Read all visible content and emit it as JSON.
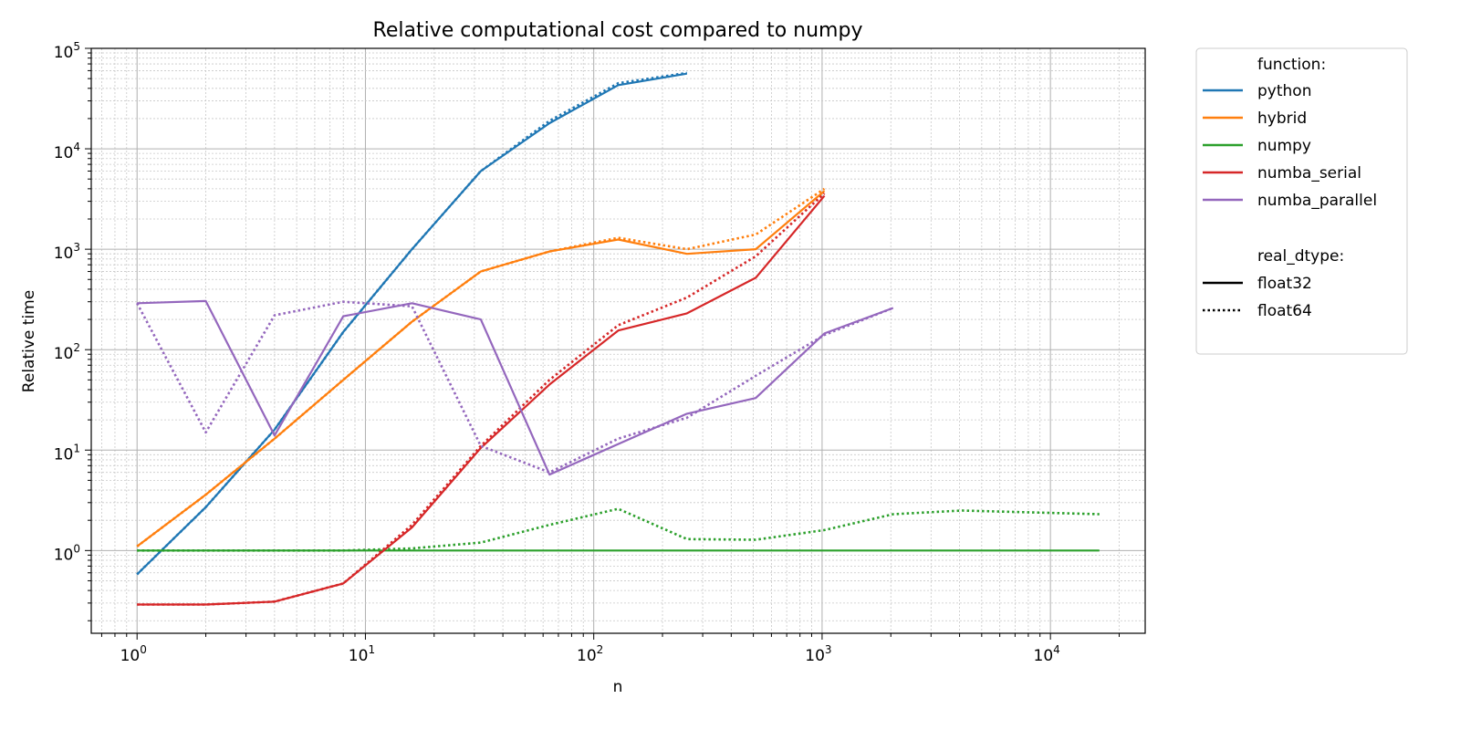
{
  "chart_data": {
    "type": "line",
    "title": "Relative computational cost compared to numpy",
    "xlabel": "n",
    "ylabel": "Relative time",
    "xscale": "log",
    "yscale": "log",
    "xlim": [
      0.63,
      26000
    ],
    "ylim": [
      0.15,
      100000
    ],
    "grid": "major and minor",
    "legend_position": "outside-right",
    "x_ticks": [
      {
        "value": 1,
        "base": "10",
        "exp": "0"
      },
      {
        "value": 10,
        "base": "10",
        "exp": "1"
      },
      {
        "value": 100,
        "base": "10",
        "exp": "2"
      },
      {
        "value": 1000,
        "base": "10",
        "exp": "3"
      },
      {
        "value": 10000,
        "base": "10",
        "exp": "4"
      }
    ],
    "y_ticks": [
      {
        "value": 1,
        "base": "10",
        "exp": "0"
      },
      {
        "value": 10,
        "base": "10",
        "exp": "1"
      },
      {
        "value": 100,
        "base": "10",
        "exp": "2"
      },
      {
        "value": 1000,
        "base": "10",
        "exp": "3"
      },
      {
        "value": 10000,
        "base": "10",
        "exp": "4"
      },
      {
        "value": 100000,
        "base": "10",
        "exp": "5"
      }
    ],
    "legend": {
      "function_header": "function:",
      "functions": [
        {
          "name": "python",
          "color": "#1f77b4"
        },
        {
          "name": "hybrid",
          "color": "#ff7f0e"
        },
        {
          "name": "numpy",
          "color": "#2ca02c"
        },
        {
          "name": "numba_serial",
          "color": "#d62728"
        },
        {
          "name": "numba_parallel",
          "color": "#9467bd"
        }
      ],
      "dtype_header": "real_dtype:",
      "dtypes": [
        {
          "name": "float32",
          "style": "solid"
        },
        {
          "name": "float64",
          "style": "dotted"
        }
      ]
    },
    "series": [
      {
        "function": "python",
        "dtype": "float32",
        "color": "#1f77b4",
        "style": "solid",
        "x": [
          1,
          2,
          4,
          8,
          16,
          32,
          64,
          128,
          256
        ],
        "y": [
          0.58,
          2.7,
          16,
          150,
          1000,
          6000,
          18000,
          43000,
          56000
        ]
      },
      {
        "function": "python",
        "dtype": "float64",
        "color": "#1f77b4",
        "style": "dotted",
        "x": [
          1,
          2,
          4,
          8,
          16,
          32,
          64,
          128,
          256
        ],
        "y": [
          0.58,
          2.7,
          16,
          150,
          1000,
          6000,
          19000,
          45000,
          57000
        ]
      },
      {
        "function": "hybrid",
        "dtype": "float32",
        "color": "#ff7f0e",
        "style": "solid",
        "x": [
          1,
          2,
          4,
          8,
          16,
          32,
          64,
          128,
          256,
          512,
          1024
        ],
        "y": [
          1.1,
          3.6,
          13,
          50,
          190,
          600,
          950,
          1250,
          900,
          1000,
          3800
        ]
      },
      {
        "function": "hybrid",
        "dtype": "float64",
        "color": "#ff7f0e",
        "style": "dotted",
        "x": [
          1,
          2,
          4,
          8,
          16,
          32,
          64,
          128,
          256,
          512,
          1024
        ],
        "y": [
          1.1,
          3.6,
          13,
          50,
          190,
          600,
          950,
          1300,
          1000,
          1400,
          4000
        ]
      },
      {
        "function": "numpy",
        "dtype": "float32",
        "color": "#2ca02c",
        "style": "solid",
        "x": [
          1,
          2,
          4,
          8,
          16,
          32,
          64,
          128,
          256,
          512,
          1024,
          2048,
          4096,
          8192,
          16384
        ],
        "y": [
          1,
          1,
          1,
          1,
          1,
          1,
          1,
          1,
          1,
          1,
          1,
          1,
          1,
          1,
          1
        ]
      },
      {
        "function": "numpy",
        "dtype": "float64",
        "color": "#2ca02c",
        "style": "dotted",
        "x": [
          1,
          2,
          4,
          8,
          16,
          32,
          64,
          128,
          256,
          512,
          1024,
          2048,
          4096,
          8192,
          16384
        ],
        "y": [
          1,
          1,
          1,
          1,
          1.05,
          1.2,
          1.8,
          2.6,
          1.3,
          1.28,
          1.6,
          2.3,
          2.5,
          2.4,
          2.3
        ]
      },
      {
        "function": "numba_serial",
        "dtype": "float32",
        "color": "#d62728",
        "style": "solid",
        "x": [
          1,
          2,
          4,
          8,
          16,
          32,
          64,
          128,
          256,
          512,
          1024
        ],
        "y": [
          0.29,
          0.29,
          0.31,
          0.47,
          1.7,
          10.5,
          45,
          155,
          230,
          520,
          3400
        ]
      },
      {
        "function": "numba_serial",
        "dtype": "float64",
        "color": "#d62728",
        "style": "dotted",
        "x": [
          1,
          2,
          4,
          8,
          16,
          32,
          64,
          128,
          256,
          512,
          1024
        ],
        "y": [
          0.29,
          0.29,
          0.31,
          0.47,
          1.8,
          11,
          50,
          175,
          330,
          850,
          3600
        ]
      },
      {
        "function": "numba_parallel",
        "dtype": "float32",
        "color": "#9467bd",
        "style": "solid",
        "x": [
          1,
          2,
          4,
          8,
          16,
          32,
          64,
          128,
          256,
          512,
          1024,
          2048
        ],
        "y": [
          290,
          305,
          14,
          215,
          290,
          200,
          5.7,
          11.5,
          23,
          33,
          145,
          260
        ]
      },
      {
        "function": "numba_parallel",
        "dtype": "float64",
        "color": "#9467bd",
        "style": "dotted",
        "x": [
          1,
          2,
          4,
          8,
          16,
          32,
          64,
          128,
          256,
          512,
          1024,
          2048
        ],
        "y": [
          290,
          15,
          220,
          300,
          270,
          11,
          6,
          13,
          21,
          55,
          140,
          260
        ]
      }
    ]
  }
}
